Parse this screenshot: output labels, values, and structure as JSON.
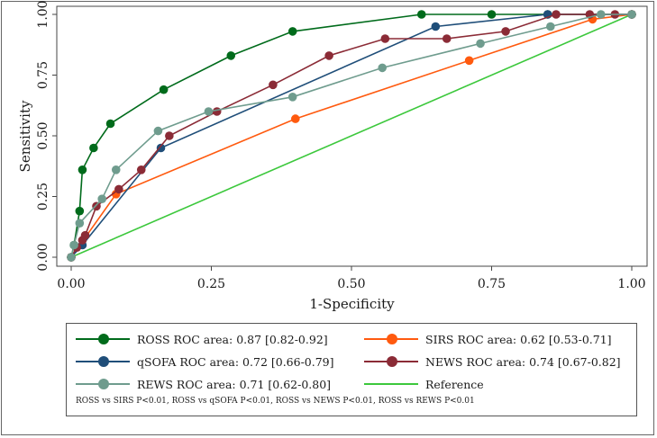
{
  "chart_data": {
    "type": "line",
    "title": "",
    "xlabel": "1-Specificity",
    "ylabel": "Sensitivity",
    "xlim": [
      0,
      1
    ],
    "ylim": [
      0,
      1
    ],
    "xticks": [
      "0.00",
      "0.25",
      "0.50",
      "0.75",
      "1.00"
    ],
    "yticks": [
      "0.00",
      "0.25",
      "0.50",
      "0.75",
      "1.00"
    ],
    "grid": false,
    "legend_position": "bottom",
    "series": [
      {
        "name": "ROSS ROC area: 0.87 [0.82-0.92]",
        "color": "#006b1b",
        "x": [
          0,
          0.005,
          0.015,
          0.02,
          0.04,
          0.07,
          0.165,
          0.285,
          0.395,
          0.625,
          0.75,
          0.85,
          1.0
        ],
        "y": [
          0,
          0.05,
          0.19,
          0.36,
          0.45,
          0.55,
          0.69,
          0.83,
          0.93,
          1.0,
          1.0,
          1.0,
          1.0
        ]
      },
      {
        "name": "SIRS ROC area: 0.62 [0.53-0.71]",
        "color": "#ff5a0f",
        "x": [
          0,
          0.08,
          0.4,
          0.71,
          0.93,
          1.0
        ],
        "y": [
          0,
          0.26,
          0.57,
          0.81,
          0.98,
          1.0
        ]
      },
      {
        "name": "qSOFA ROC area: 0.72 [0.66-0.79]",
        "color": "#1f4e79",
        "x": [
          0,
          0.02,
          0.16,
          0.65,
          0.85,
          1.0
        ],
        "y": [
          0,
          0.05,
          0.45,
          0.95,
          1.0,
          1.0
        ]
      },
      {
        "name": "NEWS ROC area: 0.74 [0.67-0.82]",
        "color": "#8b2b36",
        "x": [
          0,
          0.01,
          0.02,
          0.025,
          0.045,
          0.085,
          0.125,
          0.175,
          0.26,
          0.36,
          0.46,
          0.56,
          0.67,
          0.775,
          0.865,
          0.925,
          0.97,
          1.0
        ],
        "y": [
          0,
          0.04,
          0.07,
          0.09,
          0.21,
          0.28,
          0.36,
          0.5,
          0.6,
          0.71,
          0.83,
          0.9,
          0.9,
          0.93,
          1.0,
          1.0,
          1.0,
          1.0
        ]
      },
      {
        "name": "REWS ROC area: 0.71 [0.62-0.80]",
        "color": "#6f9c8e",
        "x": [
          0,
          0.005,
          0.015,
          0.055,
          0.08,
          0.155,
          0.245,
          0.395,
          0.555,
          0.73,
          0.855,
          0.945,
          1.0
        ],
        "y": [
          0,
          0.05,
          0.14,
          0.24,
          0.36,
          0.52,
          0.6,
          0.66,
          0.78,
          0.88,
          0.95,
          1.0,
          1.0
        ]
      },
      {
        "name": "Reference",
        "color": "#3cc83c",
        "markers": false,
        "x": [
          0,
          1
        ],
        "y": [
          0,
          1
        ]
      }
    ],
    "annotation": "ROSS vs SIRS P<0.01, ROSS vs qSOFA P<0.01, ROSS vs NEWS P<0.01, ROSS vs REWS P<0.01"
  }
}
